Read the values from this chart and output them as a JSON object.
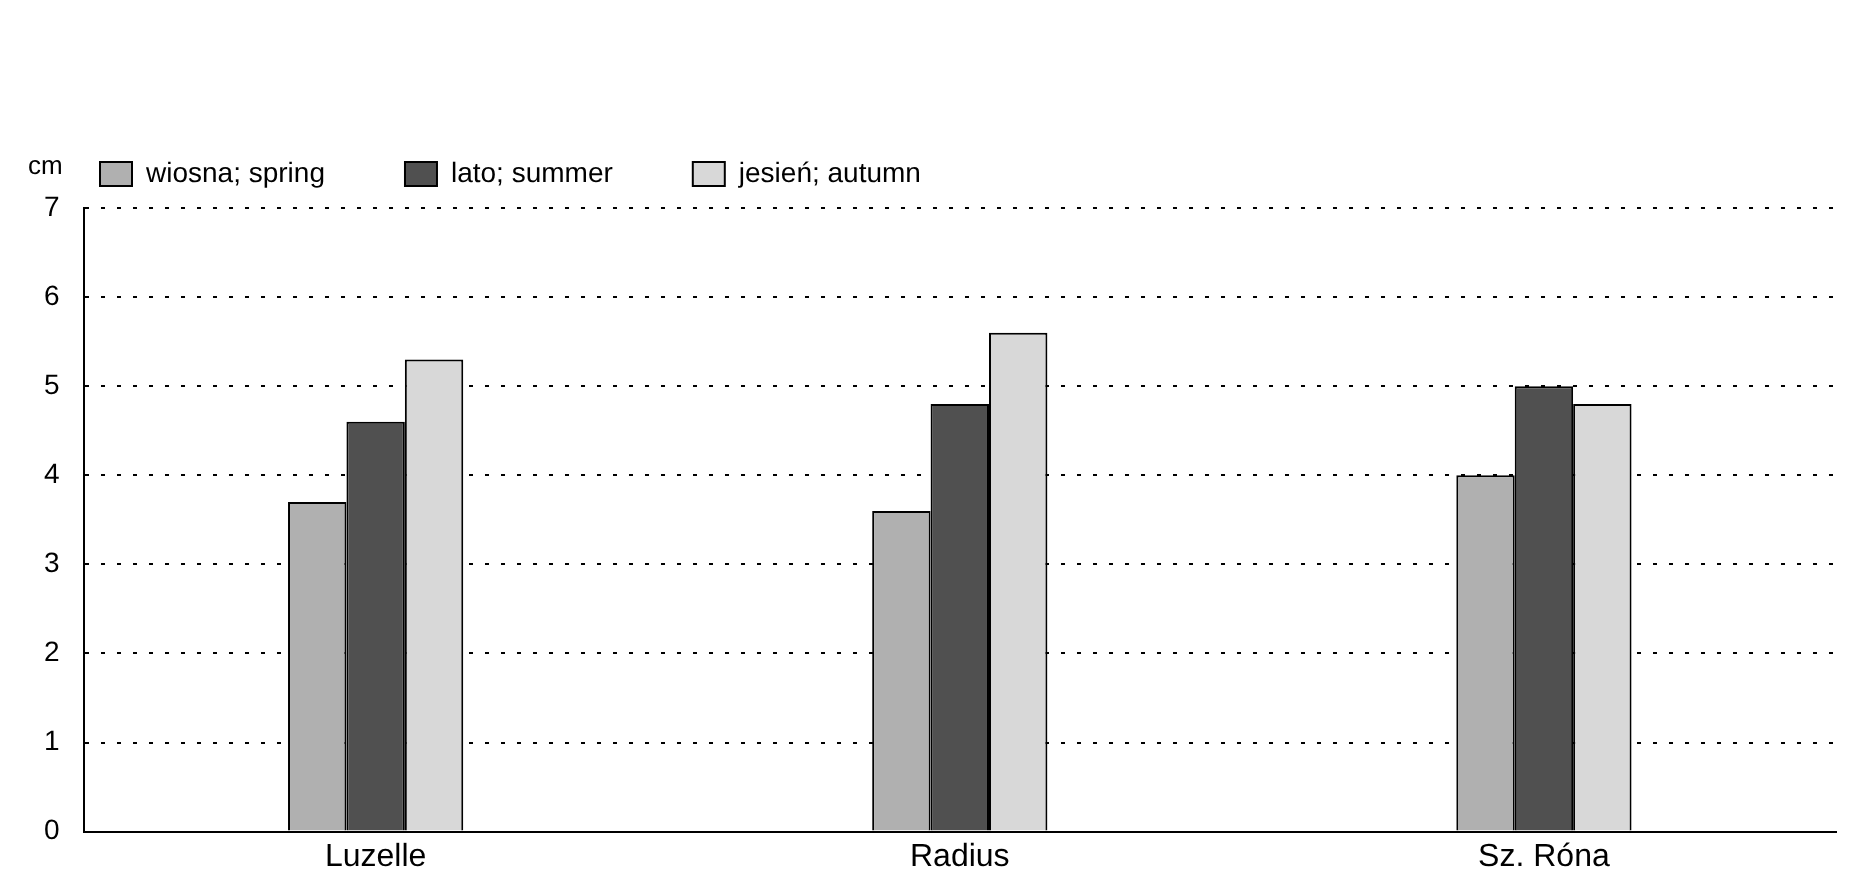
{
  "chart_data": {
    "type": "bar",
    "ylabel": "cm",
    "categories": [
      "Luzelle",
      "Radius",
      "Sz. Róna"
    ],
    "series": [
      {
        "name": "wiosna; spring",
        "color": "#b0b0b0",
        "values": [
          3.7,
          3.6,
          4.0
        ]
      },
      {
        "name": "lato; summer",
        "color": "#505050",
        "values": [
          4.6,
          4.8,
          5.0
        ]
      },
      {
        "name": "jesień; autumn",
        "color": "#d8d8d8",
        "values": [
          5.3,
          5.6,
          4.8
        ]
      }
    ],
    "ylim": [
      0,
      7
    ],
    "yticks": [
      0,
      1,
      2,
      3,
      4,
      5,
      6,
      7
    ],
    "grid": "y",
    "legend": "top left"
  }
}
